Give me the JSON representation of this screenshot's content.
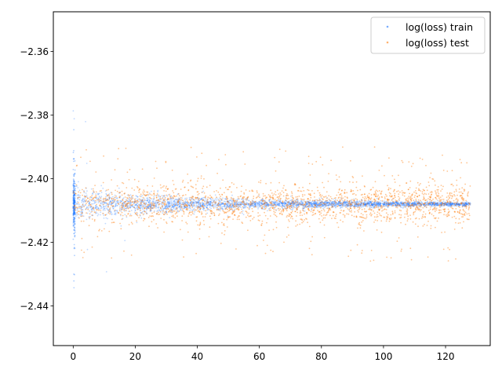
{
  "chart_data": {
    "type": "scatter",
    "title": "",
    "xlabel": "",
    "ylabel": "",
    "xlim": [
      -6.4,
      134.4
    ],
    "ylim": [
      -2.4525,
      -2.3475
    ],
    "x_ticks": [
      0,
      20,
      40,
      60,
      80,
      100,
      120
    ],
    "x_tick_labels": [
      "0",
      "20",
      "40",
      "60",
      "80",
      "100",
      "120"
    ],
    "y_ticks": [
      -2.44,
      -2.42,
      -2.4,
      -2.38,
      -2.36
    ],
    "y_tick_labels": [
      "−2.44",
      "−2.42",
      "−2.40",
      "−2.38",
      "−2.36"
    ],
    "grid": false,
    "legend_position": "top-right",
    "series": [
      {
        "name": "log(loss) train",
        "color": "#1f77ff",
        "x_range": [
          0,
          128
        ],
        "center": -2.408,
        "spread": [
          {
            "x": 0,
            "sd": 0.0025,
            "max_dev": 0.04
          },
          {
            "x": 20,
            "sd": 0.0015,
            "max_dev": 0.006
          },
          {
            "x": 60,
            "sd": 0.0007,
            "max_dev": 0.003
          },
          {
            "x": 128,
            "sd": 0.0003,
            "max_dev": 0.001
          }
        ]
      },
      {
        "name": "log(loss) test",
        "color": "#ff7f0e",
        "x_range": [
          0,
          128
        ],
        "center": -2.408,
        "spread": [
          {
            "x": 0,
            "sd": 0.003,
            "max_dev": 0.018
          },
          {
            "x": 128,
            "sd": 0.003,
            "max_dev": 0.018
          }
        ]
      }
    ]
  }
}
